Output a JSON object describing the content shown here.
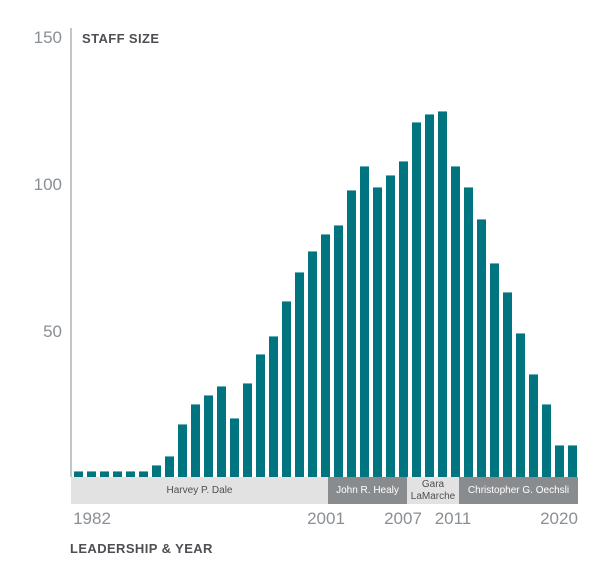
{
  "chart_data": {
    "type": "bar",
    "title": "",
    "ylabel": "STAFF SIZE",
    "xlabel": "LEADERSHIP & YEAR",
    "ylim": [
      0,
      150
    ],
    "yticks": [
      50,
      100,
      150
    ],
    "xtick_labels": [
      "1982",
      "2001",
      "2007",
      "2011",
      "2020"
    ],
    "grid": false,
    "bar_color": "#007580",
    "categories": [
      "1982",
      "1983",
      "1984",
      "1985",
      "1986",
      "1987",
      "1988",
      "1989",
      "1990",
      "1991",
      "1992",
      "1993",
      "1994",
      "1995",
      "1996",
      "1997",
      "1998",
      "1999",
      "2000",
      "2001",
      "2002",
      "2003",
      "2004",
      "2005",
      "2006",
      "2007",
      "2008",
      "2009",
      "2010",
      "2011",
      "2012",
      "2013",
      "2014",
      "2015",
      "2016",
      "2017",
      "2018",
      "2019",
      "2020"
    ],
    "values": [
      2,
      2,
      2,
      2,
      2,
      2,
      4,
      7,
      18,
      25,
      28,
      31,
      20,
      32,
      42,
      48,
      60,
      70,
      77,
      83,
      86,
      98,
      106,
      99,
      103,
      108,
      121,
      124,
      125,
      106,
      99,
      88,
      73,
      63,
      49,
      35,
      25,
      11,
      11
    ],
    "leadership": [
      {
        "name": "Harvey P. Dale",
        "start": "1982",
        "end": "2000",
        "color": "#e2e2e2"
      },
      {
        "name": "John R. Healy",
        "start": "2001",
        "end": "2006",
        "color": "#898c8f"
      },
      {
        "name": "Gara LaMarche",
        "start": "2007",
        "end": "2010",
        "color": "#e2e2e2"
      },
      {
        "name": "Christopher G. Oechsli",
        "start": "2011",
        "end": "2020",
        "color": "#898c8f"
      }
    ]
  },
  "axis": {
    "y_title": "STAFF SIZE",
    "x_title": "LEADERSHIP & YEAR",
    "y_ticks": [
      "150",
      "100",
      "50"
    ],
    "x_ticks": [
      "1982",
      "2001",
      "2007",
      "2011",
      "2020"
    ]
  },
  "bands": {
    "dale": "Harvey P. Dale",
    "healy": "John R. Healy",
    "lamarche_1": "Gara",
    "lamarche_2": "LaMarche",
    "oechsli": "Christopher G. Oechsli"
  }
}
